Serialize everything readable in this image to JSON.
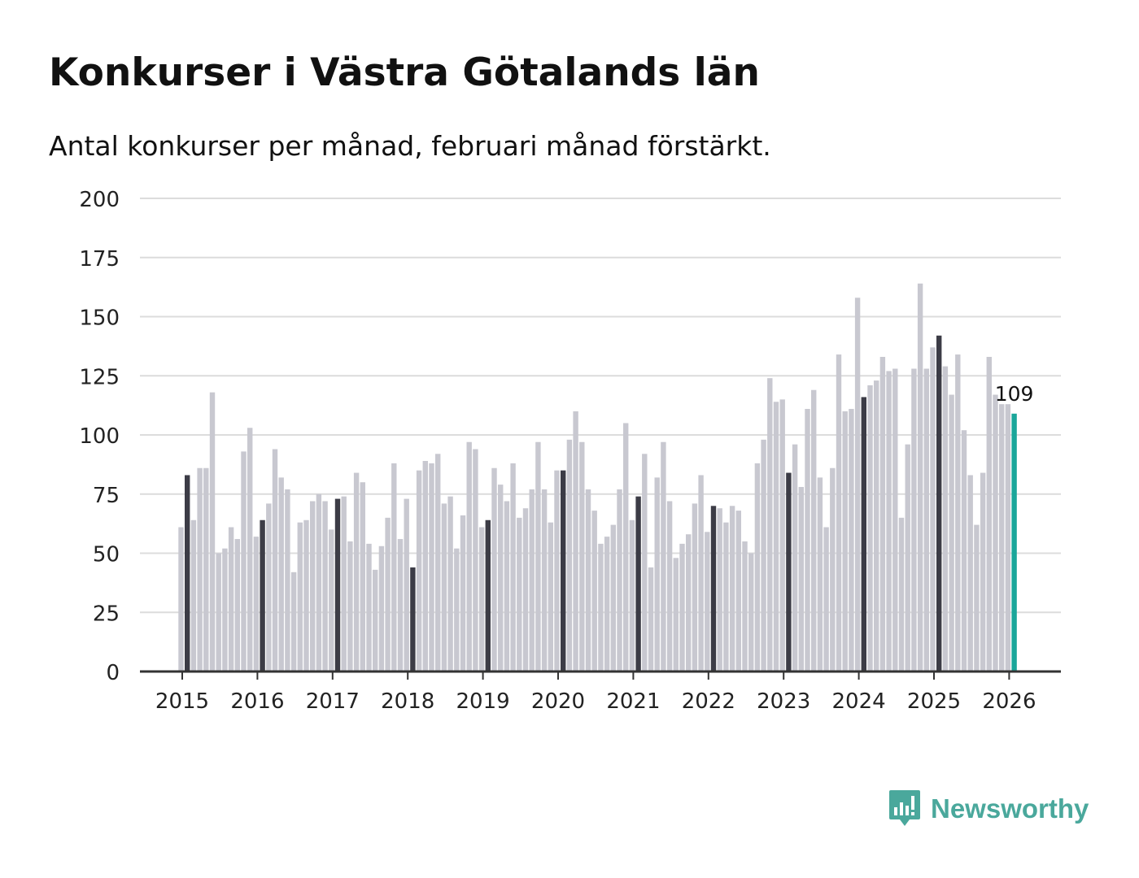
{
  "header": {
    "title": "Konkurser i Västra Götalands län",
    "subtitle": "Antal konkurser per månad, februari månad förstärkt."
  },
  "brand": {
    "name": "Newsworthy",
    "icon": "newsworthy-logo-icon"
  },
  "colors": {
    "bar_default": "#c8c8d0",
    "bar_highlight": "#3c3c46",
    "bar_latest": "#1aa69a",
    "grid": "#dcdcdc",
    "axis": "#333333",
    "brand": "#4aa89c"
  },
  "chart_data": {
    "type": "bar",
    "title": "Konkurser i Västra Götalands län",
    "subtitle": "Antal konkurser per månad, februari månad förstärkt.",
    "xlabel": "",
    "ylabel": "",
    "ylim": [
      0,
      200
    ],
    "yticks": [
      0,
      25,
      50,
      75,
      100,
      125,
      150,
      175,
      200
    ],
    "grid": true,
    "start": "2015-01",
    "xticks": [
      "2015",
      "2016",
      "2017",
      "2018",
      "2019",
      "2020",
      "2021",
      "2022",
      "2023",
      "2024",
      "2025",
      "2026"
    ],
    "highlight_month": 2,
    "latest_label": "109",
    "values": [
      61,
      83,
      64,
      86,
      86,
      118,
      50,
      52,
      61,
      56,
      93,
      103,
      57,
      64,
      71,
      94,
      82,
      77,
      42,
      63,
      64,
      72,
      75,
      72,
      60,
      73,
      74,
      55,
      84,
      80,
      54,
      43,
      53,
      65,
      88,
      56,
      73,
      44,
      85,
      89,
      88,
      92,
      71,
      74,
      52,
      66,
      97,
      94,
      61,
      64,
      86,
      79,
      72,
      88,
      65,
      69,
      77,
      97,
      77,
      63,
      85,
      85,
      98,
      110,
      97,
      77,
      68,
      54,
      57,
      62,
      77,
      105,
      64,
      74,
      92,
      44,
      82,
      97,
      72,
      48,
      54,
      58,
      71,
      83,
      59,
      70,
      69,
      63,
      70,
      68,
      55,
      50,
      88,
      98,
      124,
      114,
      115,
      84,
      96,
      78,
      111,
      119,
      82,
      61,
      86,
      134,
      110,
      111,
      158,
      116,
      121,
      123,
      133,
      127,
      128,
      65,
      96,
      128,
      164,
      128,
      137,
      142,
      129,
      117,
      134,
      102,
      83,
      62,
      84,
      133,
      117,
      113,
      113,
      109
    ]
  }
}
